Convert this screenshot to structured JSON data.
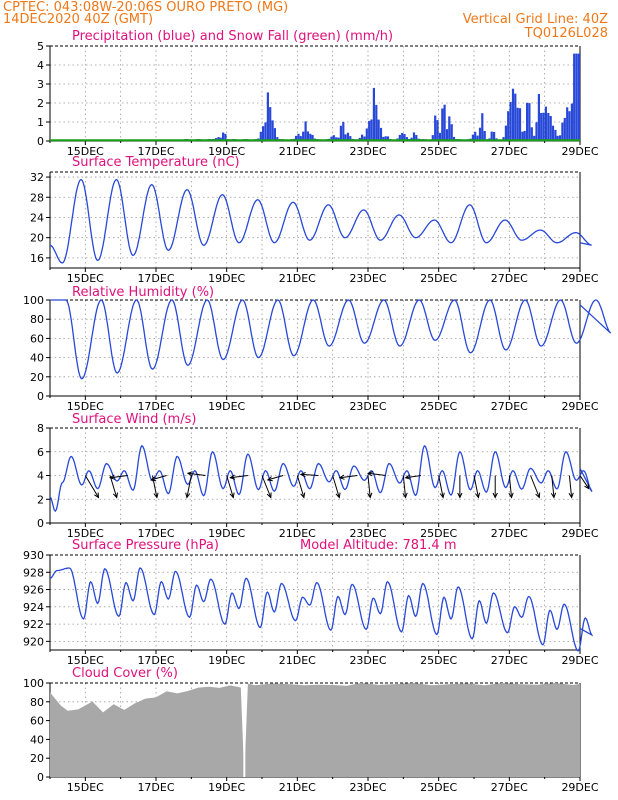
{
  "header": {
    "line1_left": "CPTEC:   043:08W-20:06S   OURO PRETO (MG)",
    "line2_left": "14DEC2020 40Z (GMT)",
    "line2_right": "Vertical Grid Line: 40Z",
    "line3_right": "TQ0126L028"
  },
  "colors": {
    "header": "#f07818",
    "title": "#e0107c",
    "line": "#2848d8",
    "snow": "#16a016",
    "cloud": "#a8a8a8"
  },
  "x_ticks": [
    "15DEC",
    "17DEC",
    "19DEC",
    "21DEC",
    "23DEC",
    "25DEC",
    "27DEC",
    "29DEC"
  ],
  "chart_data": [
    {
      "type": "bar",
      "title": "Precipitation (blue) and Snow Fall (green) (mm/h)",
      "ylim": [
        0,
        5
      ],
      "yticks": [
        0,
        1,
        2,
        3,
        4,
        5
      ],
      "series": [
        {
          "name": "Precipitation",
          "events": [
            [
              18.7,
              0.15
            ],
            [
              18.9,
              0.35
            ],
            [
              20.0,
              0.9
            ],
            [
              20.15,
              2.1
            ],
            [
              20.3,
              1.0
            ],
            [
              21.0,
              0.4
            ],
            [
              21.2,
              0.75
            ],
            [
              21.35,
              0.4
            ],
            [
              22.0,
              0.3
            ],
            [
              22.25,
              0.9
            ],
            [
              22.4,
              0.35
            ],
            [
              22.8,
              0.2
            ],
            [
              23.0,
              1.2
            ],
            [
              23.15,
              2.3
            ],
            [
              23.3,
              1.0
            ],
            [
              23.5,
              0.15
            ],
            [
              23.9,
              0.2
            ],
            [
              24.0,
              0.35
            ],
            [
              24.3,
              0.4
            ],
            [
              24.9,
              1.2
            ],
            [
              25.1,
              2.0
            ],
            [
              25.3,
              1.3
            ],
            [
              26.0,
              0.5
            ],
            [
              26.2,
              1.1
            ],
            [
              26.5,
              0.4
            ],
            [
              26.9,
              0.6
            ],
            [
              27.0,
              1.9
            ],
            [
              27.1,
              2.5
            ],
            [
              27.25,
              1.6
            ],
            [
              27.5,
              1.4
            ],
            [
              27.8,
              1.6
            ],
            [
              28.0,
              1.7
            ],
            [
              28.1,
              0.8
            ],
            [
              28.5,
              0.4
            ],
            [
              28.65,
              1.5
            ],
            [
              28.8,
              3.3
            ],
            [
              28.9,
              4.5
            ],
            [
              29.0,
              1.6
            ]
          ],
          "base": 0.08
        },
        {
          "name": "Snow Fall",
          "values": [
            0
          ]
        }
      ]
    },
    {
      "type": "line",
      "title": "Surface Temperature (nC)",
      "ylim": [
        14,
        33
      ],
      "yticks": [
        16,
        20,
        24,
        28,
        32
      ],
      "series": [
        {
          "name": "Temperature",
          "min": [
            15.0,
            15.5,
            16.5,
            17.5,
            18.5,
            19.0,
            19.0,
            19.5,
            20.0,
            19.5,
            20.0,
            19.0,
            19.0,
            19.5,
            19.0,
            18.5
          ],
          "max": [
            31.5,
            31.5,
            30.5,
            29.5,
            28.5,
            27.5,
            27.0,
            26.5,
            25.5,
            24.5,
            23.5,
            26.5,
            23.5,
            21.5,
            21.0,
            23.5
          ]
        }
      ]
    },
    {
      "type": "line",
      "title": "Relative Humidity (%)",
      "ylim": [
        0,
        100
      ],
      "yticks": [
        0,
        20,
        40,
        60,
        80,
        100
      ],
      "series": [
        {
          "name": "Relative Humidity",
          "min": [
            18,
            24,
            28,
            32,
            38,
            40,
            42,
            52,
            55,
            52,
            58,
            45,
            48,
            52,
            55,
            65
          ],
          "max": [
            100,
            100,
            100,
            100,
            100,
            100,
            100,
            100,
            100,
            100,
            100,
            100,
            100,
            100,
            100,
            100
          ]
        }
      ]
    },
    {
      "type": "line",
      "title": "Surface Wind (m/s)",
      "ylim": [
        0,
        8
      ],
      "yticks": [
        0,
        2,
        4,
        6,
        8
      ],
      "series": [
        {
          "name": "Wind speed",
          "values": [
            2.6,
            5.6,
            5.0,
            6.5,
            5.6,
            6.0,
            5.8,
            5.0,
            5.0,
            4.8,
            5.0,
            6.5,
            6.0,
            6.0,
            4.6,
            6.0,
            6.7,
            5.0,
            5.2,
            6.6
          ]
        }
      ],
      "vectors": [
        {
          "dx": 0.0,
          "dy": 1.0
        }
      ]
    },
    {
      "type": "line",
      "title": "Surface Pressure (hPa)",
      "annotation": "Model Altitude: 781.4 m",
      "ylim": [
        919,
        930
      ],
      "yticks": [
        920,
        922,
        924,
        926,
        928,
        930
      ],
      "series": [
        {
          "name": "Pressure",
          "maxes": [
            928.5,
            928.4,
            928.5,
            928.1,
            927.2,
            927.3,
            926.7,
            926.8,
            926.6,
            926.9,
            926.7,
            926.3,
            925.6,
            925.2,
            924.3,
            923.4,
            922.9
          ],
          "mins": [
            922.6,
            922.9,
            923.1,
            922.8,
            922.0,
            921.6,
            922.4,
            921.3,
            921.4,
            921.1,
            920.8,
            920.3,
            921.0,
            919.6,
            918.9,
            919.7
          ]
        }
      ]
    },
    {
      "type": "area",
      "title": "Cloud Cover (%)",
      "ylim": [
        0,
        100
      ],
      "yticks": [
        0,
        20,
        40,
        60,
        80,
        100
      ],
      "x": [
        14.0,
        14.3,
        14.5,
        14.8,
        15.2,
        15.5,
        15.8,
        16.1,
        16.4,
        16.7,
        17.0,
        17.3,
        17.6,
        17.9,
        18.2,
        18.5,
        18.8,
        19.1,
        19.4,
        19.5,
        19.6,
        19.8,
        20.3,
        20.8,
        21.2,
        21.6,
        22.0,
        22.4,
        22.8,
        23.3,
        23.8,
        24.3,
        24.8,
        25.3,
        25.8,
        26.3,
        26.8,
        27.3,
        27.8,
        28.3,
        28.8,
        29.0
      ],
      "values": [
        90,
        75,
        72,
        71,
        80,
        70,
        76,
        72,
        79,
        82,
        86,
        91,
        88,
        93,
        94,
        96,
        96,
        96,
        96,
        0,
        98,
        99,
        99,
        98,
        99,
        97,
        98,
        98,
        99,
        99,
        99,
        99,
        99,
        98,
        99,
        99,
        99,
        99,
        99,
        99,
        99,
        99
      ]
    }
  ]
}
